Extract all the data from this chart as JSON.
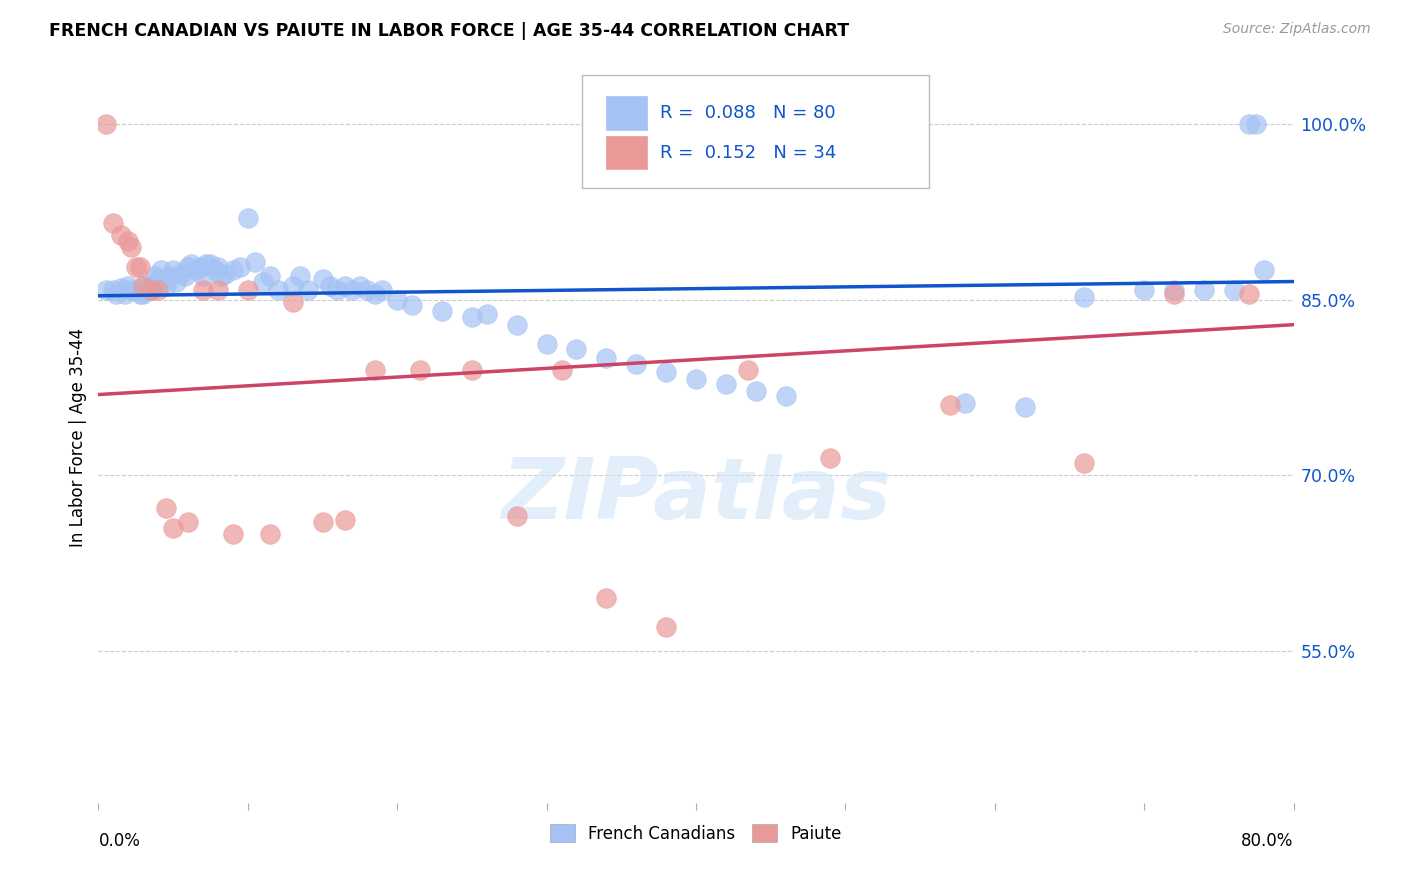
{
  "title": "FRENCH CANADIAN VS PAIUTE IN LABOR FORCE | AGE 35-44 CORRELATION CHART",
  "source": "Source: ZipAtlas.com",
  "ylabel": "In Labor Force | Age 35-44",
  "ytick_labels": [
    "100.0%",
    "85.0%",
    "70.0%",
    "55.0%"
  ],
  "ytick_values": [
    1.0,
    0.85,
    0.7,
    0.55
  ],
  "xmin": 0.0,
  "xmax": 0.8,
  "ymin": 0.42,
  "ymax": 1.045,
  "blue_R": 0.088,
  "blue_N": 80,
  "pink_R": 0.152,
  "pink_N": 34,
  "blue_color": "#a4c2f4",
  "pink_color": "#ea9999",
  "blue_line_color": "#1155cc",
  "pink_line_color": "#cc4466",
  "legend_label_blue": "French Canadians",
  "legend_label_pink": "Paiute",
  "watermark": "ZIPatlas",
  "blue_scatter_x": [
    0.005,
    0.01,
    0.012,
    0.015,
    0.018,
    0.02,
    0.022,
    0.025,
    0.028,
    0.03,
    0.03,
    0.032,
    0.035,
    0.035,
    0.038,
    0.04,
    0.04,
    0.042,
    0.045,
    0.045,
    0.048,
    0.05,
    0.052,
    0.055,
    0.058,
    0.06,
    0.062,
    0.065,
    0.068,
    0.07,
    0.072,
    0.075,
    0.078,
    0.08,
    0.082,
    0.085,
    0.09,
    0.095,
    0.1,
    0.105,
    0.11,
    0.115,
    0.12,
    0.13,
    0.135,
    0.14,
    0.15,
    0.155,
    0.16,
    0.165,
    0.17,
    0.175,
    0.18,
    0.185,
    0.19,
    0.2,
    0.21,
    0.23,
    0.25,
    0.26,
    0.28,
    0.3,
    0.32,
    0.34,
    0.36,
    0.38,
    0.4,
    0.42,
    0.44,
    0.46,
    0.58,
    0.62,
    0.66,
    0.7,
    0.72,
    0.74,
    0.76,
    0.77,
    0.775,
    0.78
  ],
  "blue_scatter_y": [
    0.858,
    0.858,
    0.855,
    0.86,
    0.855,
    0.862,
    0.858,
    0.858,
    0.855,
    0.862,
    0.855,
    0.858,
    0.862,
    0.858,
    0.87,
    0.865,
    0.868,
    0.875,
    0.862,
    0.868,
    0.87,
    0.875,
    0.865,
    0.872,
    0.87,
    0.878,
    0.88,
    0.875,
    0.878,
    0.87,
    0.88,
    0.88,
    0.875,
    0.878,
    0.87,
    0.872,
    0.875,
    0.878,
    0.92,
    0.882,
    0.865,
    0.87,
    0.858,
    0.862,
    0.87,
    0.858,
    0.868,
    0.862,
    0.858,
    0.862,
    0.858,
    0.862,
    0.858,
    0.855,
    0.858,
    0.85,
    0.845,
    0.84,
    0.835,
    0.838,
    0.828,
    0.812,
    0.808,
    0.8,
    0.795,
    0.788,
    0.782,
    0.778,
    0.772,
    0.768,
    0.762,
    0.758,
    0.852,
    0.858,
    0.858,
    0.858,
    0.858,
    1.0,
    1.0,
    0.875
  ],
  "pink_scatter_x": [
    0.005,
    0.01,
    0.015,
    0.02,
    0.022,
    0.025,
    0.028,
    0.03,
    0.035,
    0.04,
    0.045,
    0.05,
    0.06,
    0.07,
    0.08,
    0.09,
    0.1,
    0.115,
    0.13,
    0.15,
    0.165,
    0.185,
    0.215,
    0.25,
    0.28,
    0.31,
    0.34,
    0.38,
    0.435,
    0.49,
    0.57,
    0.66,
    0.72,
    0.77
  ],
  "pink_scatter_y": [
    1.0,
    0.915,
    0.905,
    0.9,
    0.895,
    0.878,
    0.878,
    0.862,
    0.858,
    0.858,
    0.672,
    0.655,
    0.66,
    0.858,
    0.858,
    0.65,
    0.858,
    0.65,
    0.848,
    0.66,
    0.662,
    0.79,
    0.79,
    0.79,
    0.665,
    0.79,
    0.595,
    0.57,
    0.79,
    0.715,
    0.76,
    0.71,
    0.855,
    0.855
  ]
}
